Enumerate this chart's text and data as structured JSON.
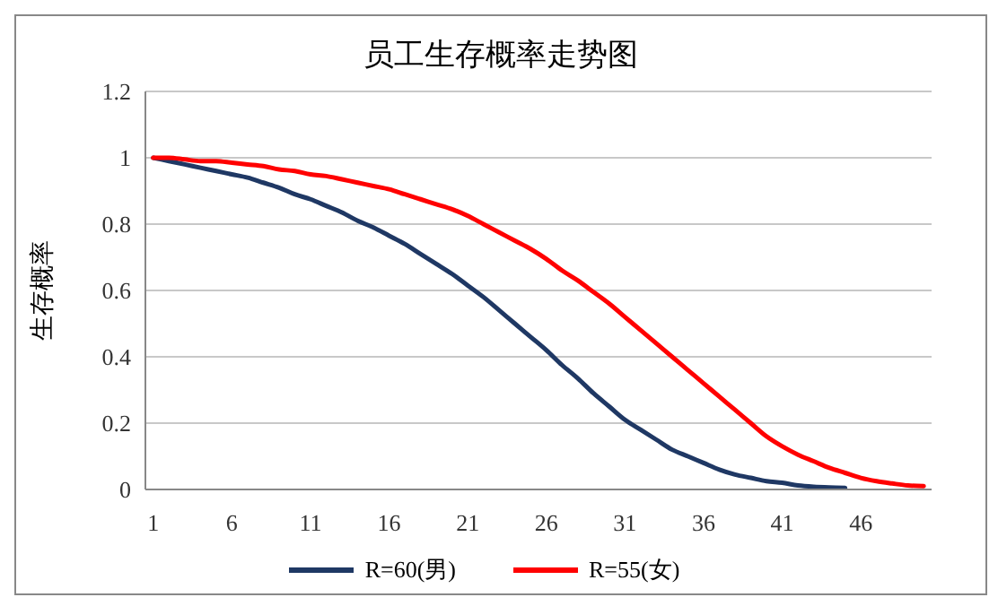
{
  "chart_data": {
    "type": "line",
    "title": "员工生存概率走势图",
    "ylabel": "生存概率",
    "x": [
      1,
      2,
      3,
      4,
      5,
      6,
      7,
      8,
      9,
      10,
      11,
      12,
      13,
      14,
      15,
      16,
      17,
      18,
      19,
      20,
      21,
      22,
      23,
      24,
      25,
      26,
      27,
      28,
      29,
      30,
      31,
      32,
      33,
      34,
      35,
      36,
      37,
      38,
      39,
      40,
      41,
      42,
      43,
      44,
      45,
      46,
      47,
      48,
      49,
      50
    ],
    "series": [
      {
        "name": "R=60(男)",
        "color": "#1f3864",
        "values": [
          1.0,
          0.99,
          0.98,
          0.97,
          0.96,
          0.95,
          0.94,
          0.925,
          0.91,
          0.89,
          0.875,
          0.855,
          0.835,
          0.81,
          0.79,
          0.765,
          0.74,
          0.71,
          0.68,
          0.65,
          0.615,
          0.58,
          0.54,
          0.5,
          0.46,
          0.42,
          0.375,
          0.335,
          0.29,
          0.25,
          0.21,
          0.18,
          0.15,
          0.12,
          0.1,
          0.08,
          0.06,
          0.045,
          0.035,
          0.025,
          0.02,
          0.012,
          0.008,
          0.006,
          0.005,
          null,
          null,
          null,
          null,
          null
        ]
      },
      {
        "name": "R=55(女)",
        "color": "#ff0000",
        "values": [
          1.0,
          1.0,
          0.995,
          0.99,
          0.99,
          0.985,
          0.98,
          0.975,
          0.965,
          0.96,
          0.95,
          0.945,
          0.935,
          0.925,
          0.915,
          0.905,
          0.89,
          0.875,
          0.86,
          0.845,
          0.825,
          0.8,
          0.775,
          0.75,
          0.725,
          0.695,
          0.66,
          0.63,
          0.595,
          0.56,
          0.52,
          0.48,
          0.44,
          0.4,
          0.36,
          0.32,
          0.28,
          0.24,
          0.2,
          0.16,
          0.13,
          0.105,
          0.085,
          0.065,
          0.05,
          0.035,
          0.025,
          0.018,
          0.012,
          0.01
        ]
      }
    ],
    "xlim": [
      0.5,
      50.5
    ],
    "xticks": [
      1,
      6,
      11,
      16,
      21,
      26,
      31,
      36,
      41,
      46
    ],
    "ylim": [
      0,
      1.2
    ],
    "yticks": [
      0,
      0.2,
      0.4,
      0.6,
      0.8,
      1,
      1.2
    ],
    "grid": "y",
    "legend": "bottom",
    "marker": "none",
    "line_style": "solid"
  }
}
